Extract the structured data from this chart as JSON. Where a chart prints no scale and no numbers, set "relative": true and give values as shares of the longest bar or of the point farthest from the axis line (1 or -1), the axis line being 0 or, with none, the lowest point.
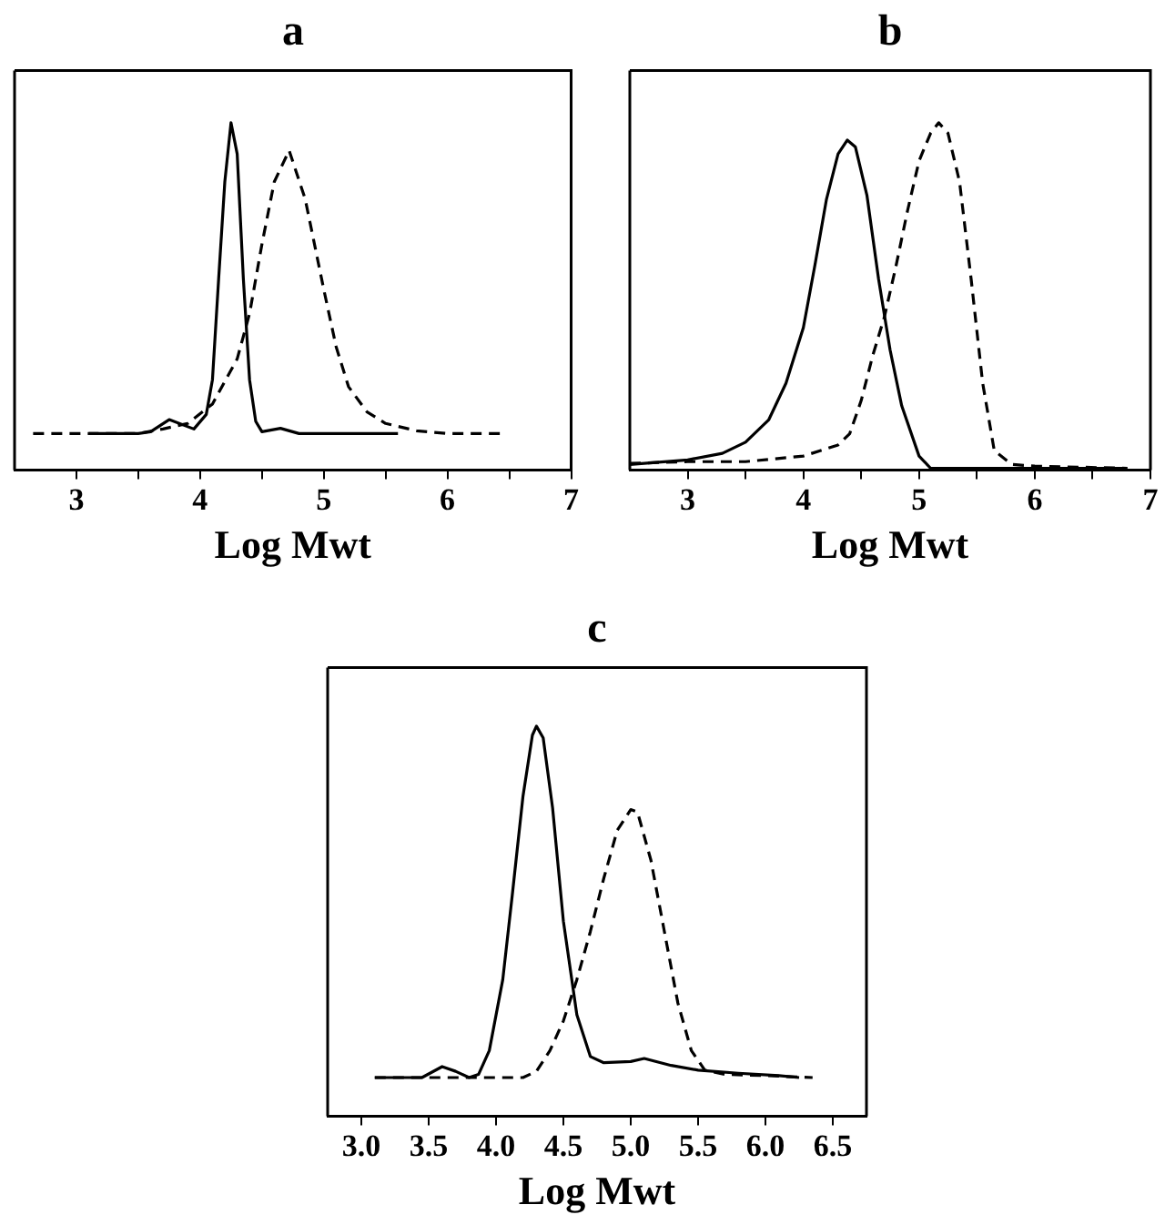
{
  "chart_data": [
    {
      "type": "line",
      "title": "a",
      "xlabel": "Log Mwt",
      "relative": true,
      "tick_labels": "x",
      "grid": false,
      "legend": false,
      "marker": "none",
      "xlim": [
        2.5,
        7
      ],
      "xticks": [
        3,
        {
          "value": 3.5,
          "label": null
        },
        4,
        {
          "value": 4.5,
          "label": null
        },
        5,
        {
          "value": 5.5,
          "label": null
        },
        6,
        {
          "value": 6.5,
          "label": null
        },
        7
      ],
      "series": [
        {
          "color": "#000000",
          "line_style": "solid",
          "x": [
            3.1,
            3.5,
            3.6,
            3.75,
            3.95,
            4.05,
            4.1,
            4.15,
            4.2,
            4.25,
            4.3,
            4.35,
            4.4,
            4.45,
            4.5,
            4.65,
            4.8,
            5.6
          ],
          "values": [
            0.105,
            0.105,
            0.11,
            0.145,
            0.118,
            0.16,
            0.26,
            0.55,
            0.83,
            1.0,
            0.91,
            0.55,
            0.26,
            0.14,
            0.11,
            0.12,
            0.105,
            0.105
          ]
        },
        {
          "color": "#000000",
          "line_style": "dashed",
          "x": [
            2.65,
            3.5,
            3.7,
            3.9,
            4.1,
            4.3,
            4.4,
            4.5,
            4.6,
            4.72,
            4.85,
            5.0,
            5.1,
            5.2,
            5.35,
            5.5,
            5.75,
            6.0,
            6.45
          ],
          "values": [
            0.105,
            0.105,
            0.118,
            0.134,
            0.19,
            0.32,
            0.45,
            0.65,
            0.83,
            0.92,
            0.78,
            0.52,
            0.355,
            0.24,
            0.167,
            0.134,
            0.113,
            0.105,
            0.105
          ]
        }
      ]
    },
    {
      "type": "line",
      "title": "b",
      "xlabel": "Log Mwt",
      "relative": true,
      "tick_labels": "x",
      "grid": false,
      "legend": false,
      "marker": "none",
      "xlim": [
        2.5,
        7
      ],
      "xticks": [
        3,
        {
          "value": 3.5,
          "label": null
        },
        4,
        {
          "value": 4.5,
          "label": null
        },
        5,
        {
          "value": 5.5,
          "label": null
        },
        6,
        {
          "value": 6.5,
          "label": null
        },
        7
      ],
      "series": [
        {
          "color": "#000000",
          "line_style": "solid",
          "x": [
            2.5,
            3.0,
            3.3,
            3.5,
            3.7,
            3.85,
            4.0,
            4.1,
            4.2,
            4.3,
            4.38,
            4.45,
            4.55,
            4.65,
            4.75,
            4.85,
            5.0,
            5.1,
            6.8
          ],
          "values": [
            0.016,
            0.029,
            0.048,
            0.08,
            0.144,
            0.25,
            0.41,
            0.59,
            0.78,
            0.91,
            0.95,
            0.93,
            0.79,
            0.55,
            0.345,
            0.185,
            0.04,
            0.005,
            0.005
          ]
        },
        {
          "color": "#000000",
          "line_style": "dashed",
          "x": [
            2.5,
            3.0,
            3.5,
            4.0,
            4.3,
            4.4,
            4.5,
            4.6,
            4.7,
            4.8,
            4.9,
            5.0,
            5.1,
            5.17,
            5.25,
            5.35,
            5.45,
            5.55,
            5.65,
            5.8,
            6.0,
            6.8
          ],
          "values": [
            0.019,
            0.024,
            0.024,
            0.04,
            0.072,
            0.104,
            0.2,
            0.33,
            0.44,
            0.586,
            0.746,
            0.89,
            0.97,
            1.0,
            0.97,
            0.83,
            0.55,
            0.25,
            0.056,
            0.016,
            0.011,
            0.005
          ]
        }
      ]
    },
    {
      "type": "line",
      "title": "c",
      "xlabel": "Log Mwt",
      "relative": true,
      "tick_labels": "x",
      "grid": false,
      "legend": false,
      "marker": "none",
      "xlim": [
        2.75,
        6.75
      ],
      "xticks": [
        {
          "value": 3,
          "label": "3.0"
        },
        3.5,
        {
          "value": 4,
          "label": "4.0"
        },
        4.5,
        {
          "value": 5,
          "label": "5.0"
        },
        5.5,
        {
          "value": 6,
          "label": "6.0"
        },
        6.5
      ],
      "series": [
        {
          "color": "#000000",
          "line_style": "solid",
          "x": [
            3.1,
            3.45,
            3.6,
            3.7,
            3.8,
            3.87,
            3.95,
            4.05,
            4.12,
            4.2,
            4.27,
            4.3,
            4.35,
            4.42,
            4.5,
            4.6,
            4.7,
            4.8,
            5.0,
            5.1,
            5.3,
            5.5,
            5.8,
            6.1,
            6.25
          ],
          "values": [
            0.099,
            0.099,
            0.127,
            0.115,
            0.099,
            0.107,
            0.168,
            0.35,
            0.565,
            0.82,
            0.977,
            1.0,
            0.97,
            0.79,
            0.5,
            0.26,
            0.153,
            0.137,
            0.14,
            0.148,
            0.13,
            0.118,
            0.11,
            0.104,
            0.099
          ]
        },
        {
          "color": "#000000",
          "line_style": "dashed",
          "x": [
            3.1,
            4.2,
            4.3,
            4.4,
            4.5,
            4.6,
            4.7,
            4.8,
            4.9,
            5.0,
            5.05,
            5.15,
            5.25,
            5.35,
            5.45,
            5.55,
            5.7,
            6.0,
            6.35
          ],
          "values": [
            0.099,
            0.099,
            0.115,
            0.168,
            0.244,
            0.35,
            0.473,
            0.61,
            0.733,
            0.786,
            0.78,
            0.656,
            0.473,
            0.29,
            0.168,
            0.118,
            0.107,
            0.104,
            0.099
          ]
        }
      ]
    }
  ]
}
